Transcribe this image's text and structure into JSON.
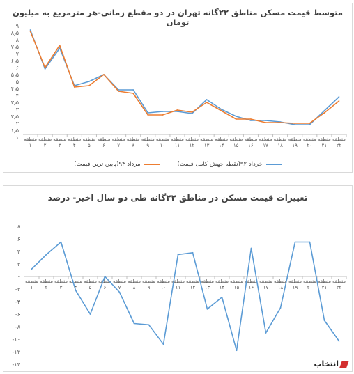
{
  "charts": [
    {
      "title": "متوسط قیمت مسکن مناطق ۲۲گانه تهران در دو مقطع زمانی-هر مترمربع به میلیون تومان",
      "legend_item_1": "خرداد ۹۲(نقطه جهش کامل قیمت)",
      "legend_item_2": "مرداد ۹۴(پایین ترین قیمت)"
    },
    {
      "title": "تغییرات قیمت مسکن در مناطق ۲۲گانه طی دو سال اخیر- درصد"
    }
  ],
  "watermark": "انتخاب",
  "chart_data": [
    {
      "type": "line",
      "title": "متوسط قیمت مسکن مناطق ۲۲گانه تهران در دو مقطع زمانی-هر مترمربع به میلیون تومان",
      "categories": [
        "منطقه ۱",
        "منطقه ۲",
        "منطقه ۳",
        "منطقه ۴",
        "منطقه ۵",
        "منطقه ۶",
        "منطقه ۷",
        "منطقه ۸",
        "منطقه ۹",
        "منطقه ۱۰",
        "منطقه ۱۱",
        "منطقه ۱۲",
        "منطقه ۱۳",
        "منطقه ۱۴",
        "منطقه ۱۵",
        "منطقه ۱۶",
        "منطقه ۱۷",
        "منطقه ۱۸",
        "منطقه ۱۹",
        "منطقه ۲۰",
        "منطقه ۲۱",
        "منطقه ۲۲"
      ],
      "yticks": [
        "۹",
        "۸٫۵",
        "۸",
        "۷٫۵",
        "۷",
        "۶٫۵",
        "۶",
        "۵٫۵",
        "۵",
        "۴٫۵",
        "۴",
        "۳٫۵",
        "۳",
        "۲٫۵",
        "۲",
        "۱٫۵",
        "۱"
      ],
      "ylim": [
        1,
        9
      ],
      "series": [
        {
          "name": "خرداد ۹۲(نقطه جهش کامل قیمت)",
          "color": "#5b9bd5",
          "values": [
            8.7,
            5.9,
            7.4,
            4.7,
            5.0,
            5.5,
            4.4,
            4.4,
            2.75,
            2.85,
            2.85,
            2.7,
            3.7,
            3.0,
            2.5,
            2.2,
            2.2,
            2.1,
            1.9,
            1.9,
            2.9,
            3.9
          ]
        },
        {
          "name": "مرداد ۹۴(پایین ترین قیمت)",
          "color": "#ed7d31",
          "values": [
            8.6,
            6.0,
            7.6,
            4.6,
            4.7,
            5.5,
            4.3,
            4.15,
            2.6,
            2.6,
            2.95,
            2.8,
            3.5,
            2.9,
            2.3,
            2.3,
            2.05,
            2.05,
            2.0,
            2.0,
            2.75,
            3.6
          ]
        }
      ]
    },
    {
      "type": "line",
      "title": "تغییرات قیمت مسکن در مناطق ۲۲گانه طی دو سال اخیر- درصد",
      "categories": [
        "منطقه ۱",
        "منطقه ۲",
        "منطقه ۳",
        "منطقه ۴",
        "منطقه ۵",
        "منطقه ۶",
        "منطقه ۷",
        "منطقه ۸",
        "منطقه ۹",
        "منطقه ۱۰",
        "منطقه ۱۱",
        "منطقه ۱۲",
        "منطقه ۱۳",
        "منطقه ۱۴",
        "منطقه ۱۵",
        "منطقه ۱۶",
        "منطقه ۱۷",
        "منطقه ۱۸",
        "منطقه ۱۹",
        "منطقه ۲۰",
        "منطقه ۲۱",
        "منطقه ۲۲"
      ],
      "yticks": [
        "۸",
        "۶",
        "۴",
        "۲",
        "۰",
        "-۲",
        "-۴",
        "-۶",
        "-۸",
        "-۱۰",
        "-۱۲",
        "-۱۴"
      ],
      "ylim": [
        -14,
        8
      ],
      "series": [
        {
          "color": "#5b9bd5",
          "values": [
            1.2,
            3.5,
            5.5,
            -2.2,
            -6.0,
            0.0,
            -2.5,
            -7.5,
            -7.7,
            -10.8,
            3.5,
            3.8,
            -5.2,
            -3.3,
            -11.8,
            4.5,
            -9.0,
            -5.0,
            5.5,
            5.5,
            -7.0,
            -10.3
          ]
        }
      ]
    }
  ]
}
